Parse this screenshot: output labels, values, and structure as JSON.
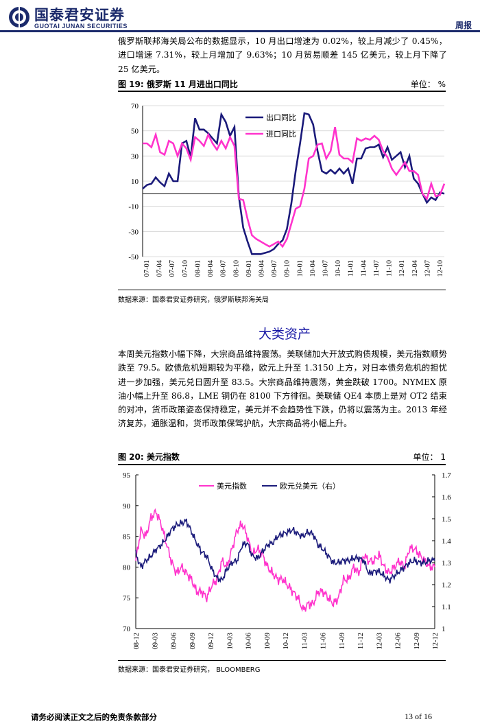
{
  "header": {
    "brand_cn": "国泰君安证券",
    "brand_en": "GUOTAI JUNAN SECURITIES",
    "report_type": "周报"
  },
  "intro_paragraph": "俄罗斯联邦海关局公布的数据显示，10 月出口增速为 0.02%，较上月减少了 0.45%，进口增速 7.31%，较上月增加了 9.63%；10 月贸易顺差 145 亿美元，较上月下降了 25 亿美元。",
  "figure19": {
    "title": "图 19:  俄罗斯 11 月进出口同比",
    "unit": "单位： %",
    "source": "数据来源：国泰君安证券研究，俄罗斯联邦海关局"
  },
  "section_title": "大类资产",
  "section_paragraph": "本周美元指数小幅下降，大宗商品维持震荡。美联储加大开放式购债规模，美元指数顺势跌至 79.5。欧债危机短期较为平稳，欧元上升至 1.3150 上方，对日本债务危机的担忧进一步加强，美元兑日圆升至 83.5。大宗商品维持震荡，黄金跌破 1700。NYMEX 原油小幅上升至 86.8，LME 铜仍在 8100 下方徘徊。美联储 QE4 本质上是对 OT2 结束的对冲，货币政策姿态保持稳定，美元并不会趋势性下跌，仍将以震荡为主。2013 年经济复苏，通胀温和，货币政策保驾护航，大宗商品将小幅上升。",
  "figure20": {
    "title": "图 20:  美元指数",
    "unit": "单位： 1",
    "source": "数据来源：国泰君安证券研究，   BLOOMBERG"
  },
  "footer": {
    "disclaimer": "请务必阅读正文之后的免责条款部分",
    "page": "13 of 16"
  },
  "colors": {
    "navy": "#1b2a6b",
    "magenta": "#ff33cc",
    "dark_blue": "#1a1a7a",
    "title_blue": "#1a1aa6"
  },
  "chart_data": [
    {
      "type": "line",
      "ylim": [
        -50,
        70
      ],
      "yticks": [
        -50,
        -30,
        -10,
        10,
        30,
        50,
        70
      ],
      "x_tick_labels": [
        "07-01",
        "07-04",
        "07-07",
        "07-10",
        "08-01",
        "08-04",
        "08-07",
        "08-10",
        "09-01",
        "09-04",
        "09-07",
        "09-10",
        "10-01",
        "10-04",
        "10-07",
        "10-10",
        "11-01",
        "11-04",
        "11-07",
        "11-10",
        "12-01",
        "12-04",
        "12-07",
        "12-10"
      ],
      "legend_position": "top-center",
      "series": [
        {
          "name": "出口同比",
          "color": "#1a1a7a",
          "values": [
            4,
            7,
            8,
            13,
            9,
            6,
            16,
            10,
            10,
            40,
            42,
            29,
            60,
            51,
            51,
            48,
            44,
            40,
            63,
            57,
            46,
            53,
            -2,
            -27,
            -38,
            -48,
            -48,
            -48,
            -47,
            -46,
            -44,
            -40,
            -37,
            -28,
            -8,
            18,
            40,
            64,
            63,
            55,
            34,
            18,
            16,
            19,
            16,
            20,
            16,
            20,
            8,
            28,
            28,
            36,
            37,
            37,
            39,
            29,
            37,
            27,
            30,
            33,
            21,
            30,
            12,
            8,
            0,
            -7,
            -3,
            -5,
            1,
            0
          ]
        },
        {
          "name": "进口同比",
          "color": "#ff33cc",
          "values": [
            40,
            40,
            37,
            47,
            33,
            31,
            42,
            40,
            30,
            40,
            36,
            27,
            45,
            42,
            38,
            47,
            40,
            35,
            42,
            36,
            45,
            38,
            -4,
            -5,
            -20,
            -33,
            -36,
            -38,
            -40,
            -42,
            -40,
            -38,
            -42,
            -36,
            -24,
            -12,
            -10,
            4,
            28,
            30,
            39,
            40,
            28,
            34,
            53,
            31,
            28,
            28,
            25,
            44,
            42,
            44,
            43,
            46,
            43,
            34,
            29,
            20,
            15,
            20,
            25,
            18,
            18,
            15,
            0,
            -4,
            8,
            -2,
            -1,
            8
          ]
        }
      ]
    },
    {
      "type": "line",
      "ylim_left": [
        70,
        95
      ],
      "yticks_left": [
        70,
        75,
        80,
        85,
        90,
        95
      ],
      "ylim_right": [
        1.0,
        1.7
      ],
      "yticks_right": [
        1,
        1.1,
        1.2,
        1.3,
        1.4,
        1.5,
        1.6,
        1.7
      ],
      "x_tick_labels": [
        "08-12",
        "09-03",
        "09-06",
        "09-09",
        "09-12",
        "10-03",
        "10-06",
        "10-09",
        "10-12",
        "11-03",
        "11-06",
        "11-09",
        "11-12",
        "12-03",
        "12-06",
        "12-09",
        "12-12"
      ],
      "legend_position": "top-left",
      "series": [
        {
          "name": "美元指数",
          "axis": "left",
          "color": "#ff33cc",
          "values": [
            81,
            86,
            85,
            88,
            89,
            87,
            84,
            81,
            79,
            80,
            79,
            78,
            76,
            76,
            75,
            77,
            78,
            81,
            80,
            83,
            86,
            87,
            85,
            82,
            83,
            82,
            80,
            79,
            78,
            78,
            77,
            76,
            75,
            73,
            74,
            74,
            76,
            76,
            75,
            74,
            75,
            78,
            78,
            80,
            79,
            82,
            81,
            81,
            82,
            80,
            79,
            80,
            81,
            80,
            83,
            83,
            82,
            81,
            80,
            80
          ]
        },
        {
          "name": "欧元兑美元（右）",
          "axis": "right",
          "color": "#1a1a7a",
          "values": [
            1.34,
            1.28,
            1.31,
            1.33,
            1.36,
            1.38,
            1.41,
            1.45,
            1.47,
            1.48,
            1.49,
            1.44,
            1.39,
            1.35,
            1.33,
            1.27,
            1.23,
            1.22,
            1.27,
            1.3,
            1.31,
            1.38,
            1.39,
            1.33,
            1.32,
            1.35,
            1.38,
            1.39,
            1.42,
            1.43,
            1.44,
            1.45,
            1.43,
            1.42,
            1.44,
            1.43,
            1.38,
            1.36,
            1.33,
            1.3,
            1.3,
            1.31,
            1.31,
            1.32,
            1.32,
            1.31,
            1.25,
            1.26,
            1.26,
            1.24,
            1.22,
            1.24,
            1.26,
            1.28,
            1.3,
            1.31,
            1.3,
            1.3,
            1.31,
            1.31
          ]
        }
      ]
    }
  ]
}
